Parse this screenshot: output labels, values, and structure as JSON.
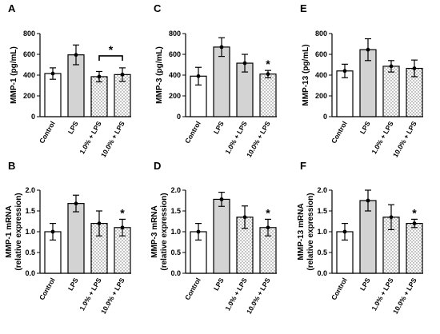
{
  "chart_data": [
    {
      "id": "A",
      "type": "bar",
      "panel_label": "A",
      "ylabel": "MMP-1 (pg/mL)",
      "ylabel2": "",
      "categories": [
        "Control",
        "LPS",
        "1.0% + LPS",
        "10.0% + LPS"
      ],
      "values": [
        415,
        595,
        385,
        405
      ],
      "errors": [
        55,
        95,
        50,
        65
      ],
      "ylim": [
        0,
        800
      ],
      "yticks": [
        "0",
        "200",
        "400",
        "600",
        "800"
      ],
      "fills": [
        "white",
        "gray",
        "dots",
        "dots"
      ],
      "star_bracket": true,
      "star_bar_index": null,
      "annotation": "*"
    },
    {
      "id": "C",
      "type": "bar",
      "panel_label": "C",
      "ylabel": "MMP-3 (pg/mL)",
      "ylabel2": "",
      "categories": [
        "Control",
        "LPS",
        "1.0% + LPS",
        "10.0% + LPS"
      ],
      "values": [
        390,
        670,
        515,
        410
      ],
      "errors": [
        85,
        90,
        85,
        35
      ],
      "ylim": [
        0,
        800
      ],
      "yticks": [
        "0",
        "200",
        "400",
        "600",
        "800"
      ],
      "fills": [
        "white",
        "gray",
        "gray",
        "dots"
      ],
      "star_bracket": false,
      "star_bar_index": 3,
      "annotation": "*"
    },
    {
      "id": "E",
      "type": "bar",
      "panel_label": "E",
      "ylabel": "MMP-13 (pg/mL)",
      "ylabel2": "",
      "categories": [
        "Control",
        "LPS",
        "1.0% + LPS",
        "10.0% + LPS"
      ],
      "values": [
        440,
        645,
        485,
        465
      ],
      "errors": [
        65,
        105,
        55,
        80
      ],
      "ylim": [
        0,
        800
      ],
      "yticks": [
        "0",
        "200",
        "400",
        "600",
        "800"
      ],
      "fills": [
        "white",
        "gray",
        "dots",
        "dots"
      ],
      "star_bracket": false,
      "star_bar_index": null,
      "annotation": ""
    },
    {
      "id": "B",
      "type": "bar",
      "panel_label": "B",
      "ylabel": "MMP-1 mRNA",
      "ylabel2": "(relative expression)",
      "categories": [
        "Control",
        "LPS",
        "1.0% + LPS",
        "10.0% + LPS"
      ],
      "values": [
        1.0,
        1.68,
        1.2,
        1.1
      ],
      "errors": [
        0.2,
        0.2,
        0.3,
        0.2
      ],
      "ylim": [
        0,
        2.0
      ],
      "yticks": [
        "0.0",
        "0.5",
        "1.0",
        "1.5",
        "2.0"
      ],
      "fills": [
        "white",
        "gray",
        "dots",
        "dots"
      ],
      "star_bracket": false,
      "star_bar_index": 3,
      "annotation": "*"
    },
    {
      "id": "D",
      "type": "bar",
      "panel_label": "D",
      "ylabel": "MMP-3 mRNA",
      "ylabel2": "(relative expression)",
      "categories": [
        "Control",
        "LPS",
        "1.0% + LPS",
        "10.0% + LPS"
      ],
      "values": [
        1.0,
        1.78,
        1.35,
        1.1
      ],
      "errors": [
        0.2,
        0.17,
        0.27,
        0.2
      ],
      "ylim": [
        0,
        2.0
      ],
      "yticks": [
        "0.0",
        "0.5",
        "1.0",
        "1.5",
        "2.0"
      ],
      "fills": [
        "white",
        "gray",
        "dots",
        "dots"
      ],
      "star_bracket": false,
      "star_bar_index": 3,
      "annotation": "*"
    },
    {
      "id": "F",
      "type": "bar",
      "panel_label": "F",
      "ylabel": "MMP-13 mRNA",
      "ylabel2": "(relative expression)",
      "categories": [
        "Control",
        "LPS",
        "1.0% + LPS",
        "10.0% + LPS"
      ],
      "values": [
        1.0,
        1.75,
        1.35,
        1.2
      ],
      "errors": [
        0.2,
        0.25,
        0.3,
        0.1
      ],
      "ylim": [
        0,
        2.0
      ],
      "yticks": [
        "0.0",
        "0.5",
        "1.0",
        "1.5",
        "2.0"
      ],
      "fills": [
        "white",
        "gray",
        "dots",
        "dots"
      ],
      "star_bracket": false,
      "star_bar_index": 3,
      "annotation": "*"
    }
  ],
  "colors": {
    "bar_gray": "#d3d3d3",
    "bar_white": "#ffffff",
    "dot": "#6e6e6e",
    "stroke": "#000000"
  }
}
